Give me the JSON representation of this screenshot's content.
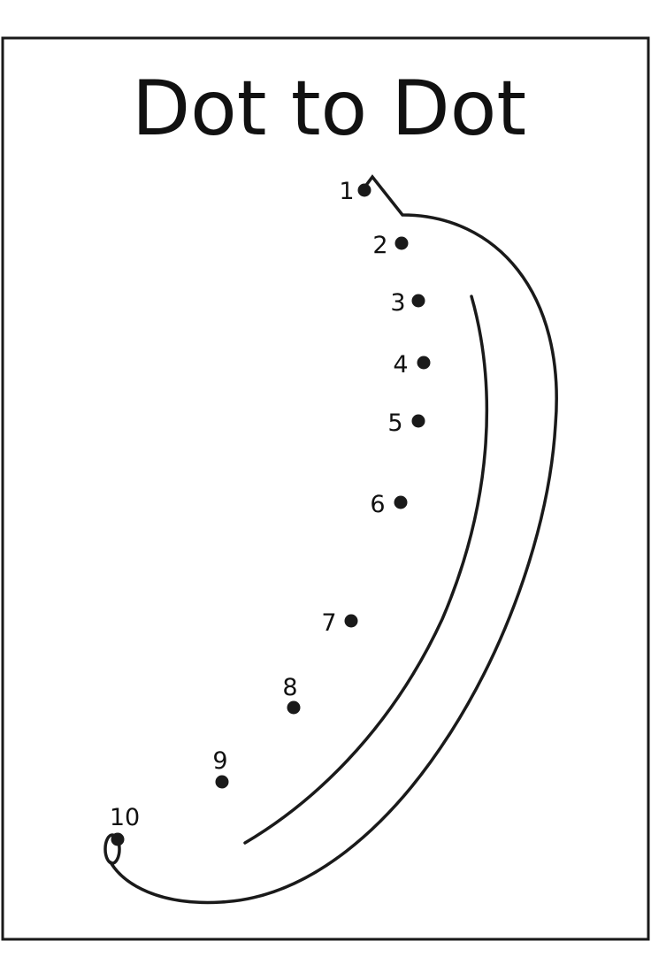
{
  "worksheet": {
    "title": "Dot to Dot",
    "dots": [
      {
        "label": "1"
      },
      {
        "label": "2"
      },
      {
        "label": "3"
      },
      {
        "label": "4"
      },
      {
        "label": "5"
      },
      {
        "label": "6"
      },
      {
        "label": "7"
      },
      {
        "label": "8"
      },
      {
        "label": "9"
      },
      {
        "label": "10"
      }
    ],
    "ink_color": "#1a1a1a"
  }
}
